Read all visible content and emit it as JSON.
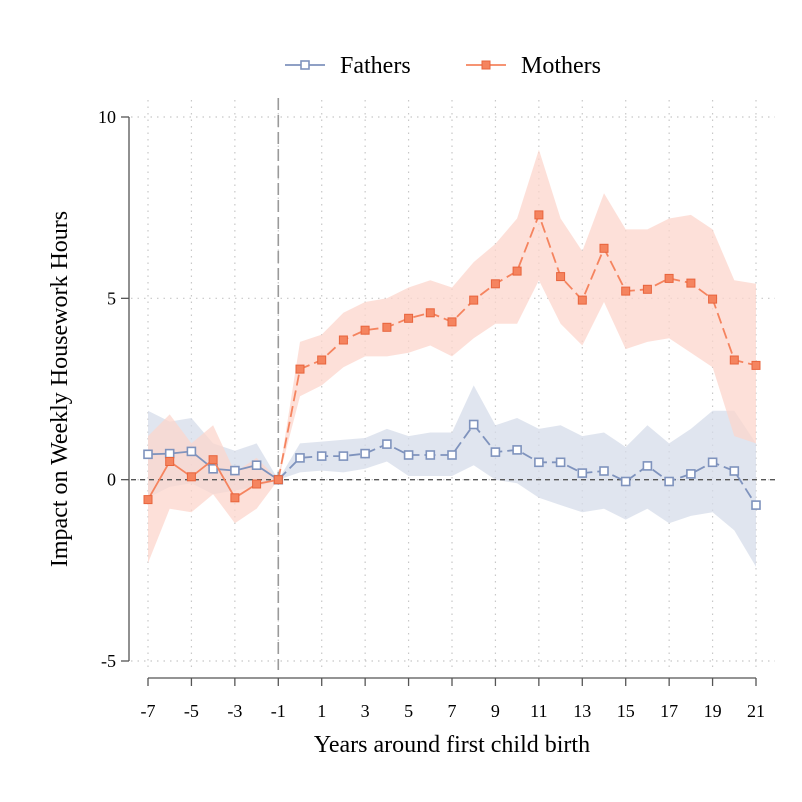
{
  "chart_data": {
    "type": "line",
    "xlabel": "Years around first child birth",
    "ylabel": "Impact on Weekly Housework Hours",
    "xlim": [
      -7,
      21
    ],
    "ylim": [
      -5,
      10
    ],
    "x_ticks": [
      -7,
      -5,
      -3,
      -1,
      1,
      3,
      5,
      7,
      9,
      11,
      13,
      15,
      17,
      19,
      21
    ],
    "y_ticks": [
      -5,
      0,
      5,
      10
    ],
    "x": [
      -7,
      -6,
      -5,
      -4,
      -3,
      -2,
      -1,
      0,
      1,
      2,
      3,
      4,
      5,
      6,
      7,
      8,
      9,
      10,
      11,
      12,
      13,
      14,
      15,
      16,
      17,
      18,
      19,
      20,
      21
    ],
    "grid": true,
    "reference_lines": {
      "vertical_x": -1,
      "horizontal_y": 0
    },
    "legend_position": "top",
    "series": [
      {
        "name": "Fathers",
        "color": "#7f93bd",
        "band_color": "#d6dcea",
        "marker": "hollow-square",
        "values": [
          0.7,
          0.72,
          0.78,
          0.3,
          0.25,
          0.4,
          0.0,
          0.6,
          0.65,
          0.65,
          0.72,
          0.98,
          0.68,
          0.68,
          0.68,
          1.52,
          0.76,
          0.82,
          0.48,
          0.48,
          0.18,
          0.24,
          -0.05,
          0.38,
          -0.05,
          0.16,
          0.48,
          0.24,
          -0.7
        ],
        "ci_upper": [
          1.9,
          1.6,
          1.7,
          1.0,
          0.8,
          1.0,
          0.0,
          1.0,
          1.05,
          1.1,
          1.15,
          1.4,
          1.2,
          1.3,
          1.3,
          2.6,
          1.5,
          1.7,
          1.4,
          1.5,
          1.2,
          1.3,
          0.9,
          1.5,
          1.0,
          1.4,
          1.9,
          1.9,
          1.0
        ],
        "ci_lower": [
          -0.5,
          -0.2,
          -0.1,
          -0.4,
          -0.3,
          -0.2,
          0.0,
          0.2,
          0.25,
          0.2,
          0.3,
          0.5,
          0.1,
          0.1,
          0.1,
          0.4,
          0.0,
          -0.1,
          -0.5,
          -0.7,
          -0.9,
          -0.8,
          -1.1,
          -0.8,
          -1.2,
          -1.0,
          -0.9,
          -1.4,
          -2.4
        ]
      },
      {
        "name": "Mothers",
        "color": "#f5845f",
        "band_color": "#fcd6cc",
        "marker": "filled-square",
        "values": [
          -0.55,
          0.5,
          0.08,
          0.55,
          -0.5,
          -0.12,
          0.0,
          3.05,
          3.3,
          3.85,
          4.12,
          4.2,
          4.45,
          4.6,
          4.35,
          4.95,
          5.4,
          5.75,
          7.3,
          5.6,
          4.95,
          6.38,
          5.2,
          5.25,
          5.55,
          5.42,
          4.98,
          3.3,
          3.15
        ],
        "ci_upper": [
          1.2,
          1.8,
          1.0,
          1.5,
          0.2,
          0.6,
          0.0,
          3.8,
          4.0,
          4.6,
          4.9,
          5.0,
          5.3,
          5.5,
          5.3,
          6.0,
          6.5,
          7.2,
          9.1,
          7.2,
          6.3,
          7.9,
          6.9,
          6.9,
          7.2,
          7.3,
          6.9,
          5.5,
          5.4
        ],
        "ci_lower": [
          -2.3,
          -0.8,
          -0.9,
          -0.4,
          -1.2,
          -0.8,
          0.0,
          2.3,
          2.6,
          3.1,
          3.4,
          3.4,
          3.5,
          3.7,
          3.4,
          3.9,
          4.3,
          4.3,
          5.5,
          4.3,
          3.7,
          4.9,
          3.6,
          3.8,
          3.9,
          3.5,
          3.1,
          1.2,
          1.0
        ]
      }
    ]
  }
}
